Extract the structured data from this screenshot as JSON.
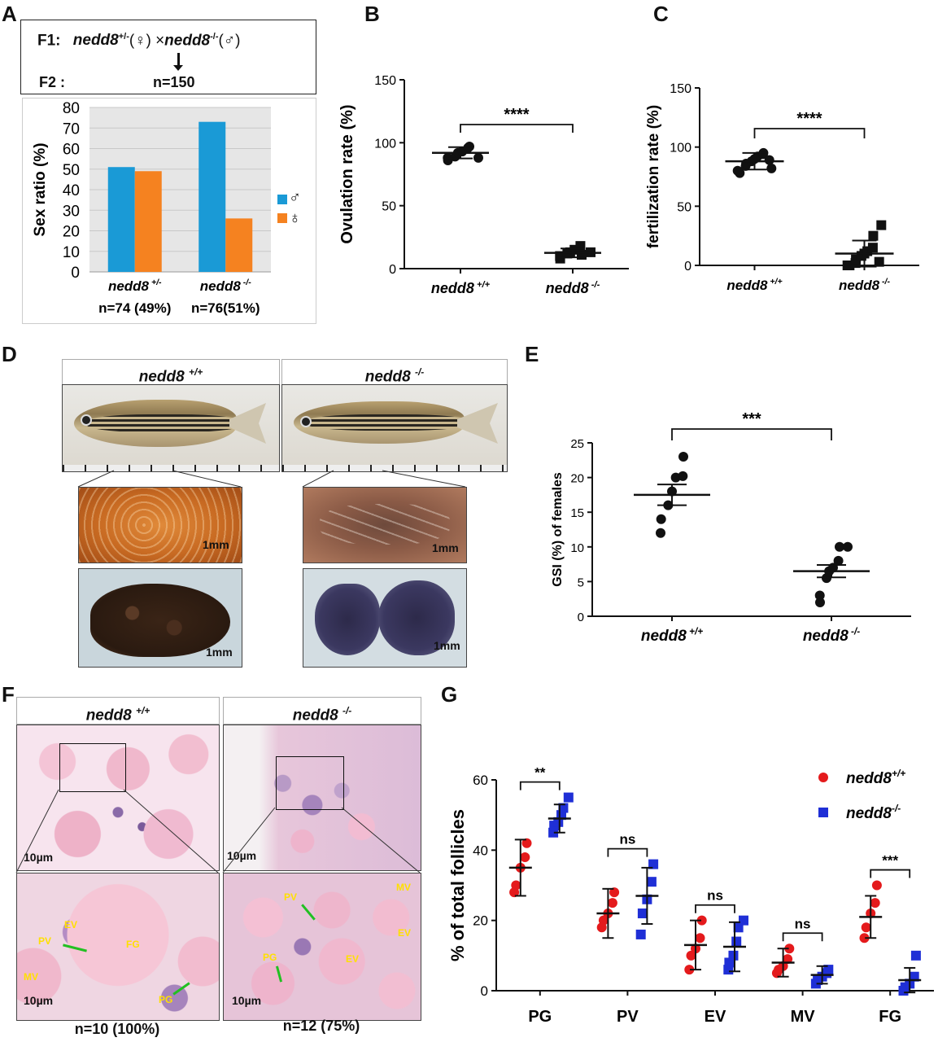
{
  "colors": {
    "male": "#1a9ad6",
    "female": "#f58220",
    "red": "#e41a1c",
    "blue": "#1f2fd6",
    "black": "#111111"
  },
  "panel_labels": {
    "a": "A",
    "b": "B",
    "c": "C",
    "d": "D",
    "e": "E",
    "f": "F",
    "g": "G"
  },
  "cross": {
    "f1_label": "F1:",
    "female_parent": "nedd8",
    "female_sup": "+/-",
    "female_sym": "(♀) ×",
    "male_parent": "nedd8",
    "male_sup": "-/-",
    "male_sym": "(♂)",
    "f2_label": "F2 :",
    "n": "n=150"
  },
  "legend_a": {
    "male_symbol": "♂",
    "female_symbol": "♀"
  },
  "panel_d": {
    "left_title": "nedd8",
    "left_sup": "+/+",
    "right_title": "nedd8",
    "right_sup": "-/-",
    "scale_1": "1mm",
    "scale_2": "1mm",
    "scale_3": "1mm",
    "scale_4": "1mm"
  },
  "panel_f": {
    "left_title": "nedd8",
    "left_sup": "+/+",
    "right_title": "nedd8",
    "right_sup": "-/-",
    "scale_1": "10µm",
    "scale_2": "10µm",
    "scale_3": "10µm",
    "scale_4": "10µm",
    "n_left": "n=10 (100%)",
    "n_right": "n=12 (75%)",
    "tissue_left": [
      "EV",
      "PV",
      "FG",
      "MV",
      "PG"
    ],
    "tissue_right": [
      "PV",
      "MV",
      "EV",
      "PG",
      "EV"
    ]
  },
  "chart_data": [
    {
      "id": "A",
      "type": "bar",
      "ylabel": "Sex ratio (%)",
      "ylim": [
        0,
        80
      ],
      "yticks": [
        0,
        10,
        20,
        30,
        40,
        50,
        60,
        70,
        80
      ],
      "grid": true,
      "legend": "right",
      "categories": [
        "nedd8 +/-",
        "nedd8 -/-"
      ],
      "category_notes": [
        "n=74 (49%)",
        "n=76(51%)"
      ],
      "series": [
        {
          "name": "♂",
          "values": [
            51,
            73
          ]
        },
        {
          "name": "♀",
          "values": [
            49,
            26
          ]
        }
      ]
    },
    {
      "id": "B",
      "type": "scatter",
      "ylabel": "Ovulation rate (%)",
      "ylim": [
        0,
        150
      ],
      "yticks": [
        0,
        50,
        100,
        150
      ],
      "categories": [
        "nedd8 +/+",
        "nedd8 -/-"
      ],
      "significance": "****",
      "groups": [
        {
          "values": [
            86,
            88,
            89,
            92,
            93,
            96,
            97,
            88
          ],
          "mean": 92,
          "sd": 4.5
        },
        {
          "values": [
            8,
            10,
            12,
            13,
            15,
            18,
            11,
            13
          ],
          "mean": 12.5,
          "sd": 3.5
        }
      ]
    },
    {
      "id": "C",
      "type": "scatter",
      "ylabel": "fertilization rate (%)",
      "ylim": [
        0,
        150
      ],
      "yticks": [
        0,
        50,
        100,
        150
      ],
      "categories": [
        "nedd8+/+",
        "nedd8 -/-"
      ],
      "significance": "****",
      "groups": [
        {
          "values": [
            78,
            80,
            84,
            86,
            88,
            90,
            92,
            94,
            95,
            82,
            89
          ],
          "mean": 88,
          "sd": 7
        },
        {
          "values": [
            0,
            0,
            2,
            5,
            8,
            10,
            12,
            15,
            25,
            34,
            3
          ],
          "mean": 10,
          "sd": 11
        }
      ]
    },
    {
      "id": "E",
      "type": "scatter",
      "ylabel": "GSI (%) of females",
      "ylim": [
        0,
        25
      ],
      "yticks": [
        0,
        5,
        10,
        15,
        20,
        25
      ],
      "categories": [
        "nedd8 +/+",
        "nedd8 -/-"
      ],
      "significance": "***",
      "groups": [
        {
          "values": [
            12,
            14,
            16,
            18,
            20,
            20.2,
            23
          ],
          "mean": 17.5,
          "sd": 1.5
        },
        {
          "values": [
            2,
            3,
            5.5,
            6.5,
            7,
            8,
            10,
            10
          ],
          "mean": 6.5,
          "sd": 0.9
        }
      ]
    },
    {
      "id": "G",
      "type": "scatter",
      "ylabel": "% of total follicles",
      "ylim": [
        0,
        60
      ],
      "yticks": [
        0,
        20,
        40,
        60
      ],
      "categories": [
        "PG",
        "PV",
        "EV",
        "MV",
        "FG"
      ],
      "legend": "top-right",
      "series": [
        {
          "name": "nedd8+/+",
          "marker": "circle",
          "values": [
            [
              28,
              30,
              35,
              38,
              42
            ],
            [
              18,
              20,
              22,
              25,
              28
            ],
            [
              6,
              10,
              12,
              15,
              20
            ],
            [
              5,
              6,
              7,
              9,
              12
            ],
            [
              15,
              18,
              22,
              25,
              30
            ]
          ],
          "mean": [
            35,
            22,
            13,
            8,
            21
          ],
          "sd": [
            8,
            7,
            7,
            4,
            6
          ]
        },
        {
          "name": "nedd8-/-",
          "marker": "square",
          "values": [
            [
              45,
              47,
              48,
              50,
              52,
              55
            ],
            [
              16,
              22,
              26,
              31,
              36
            ],
            [
              6,
              8,
              10,
              14,
              18,
              20
            ],
            [
              2,
              3,
              4,
              5,
              6
            ],
            [
              0,
              1,
              2,
              4,
              10
            ]
          ],
          "mean": [
            49,
            27,
            12.5,
            4.5,
            3
          ],
          "sd": [
            4,
            8,
            7,
            2.5,
            3.5
          ]
        }
      ],
      "significance": [
        "**",
        "ns",
        "ns",
        "ns",
        "***"
      ]
    }
  ]
}
